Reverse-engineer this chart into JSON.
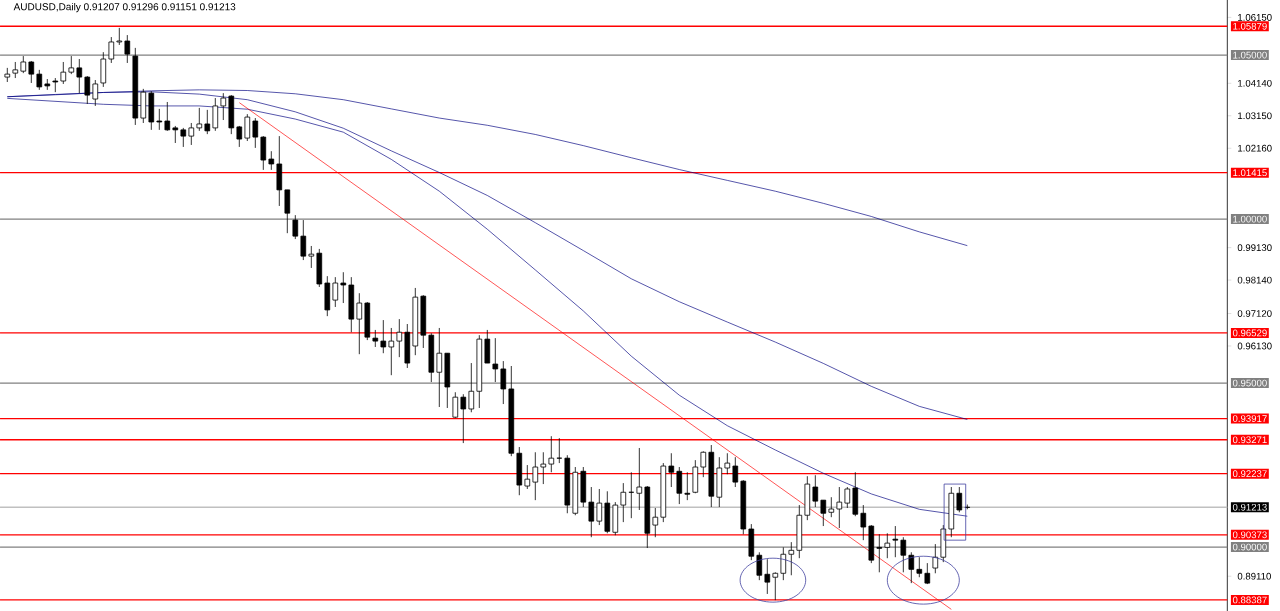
{
  "chart_data": {
    "type": "candlestick",
    "title": "AUDUSD,Daily 0.91207 0.91296 0.91151 0.91213",
    "categories": [
      null,
      null,
      null,
      null,
      null,
      null,
      null,
      null,
      null,
      null,
      null,
      null,
      null,
      null,
      null,
      null,
      null,
      null,
      null,
      null,
      null,
      null,
      null,
      null,
      null,
      null,
      null,
      null,
      null,
      null,
      null,
      null,
      null,
      null,
      null,
      null,
      null,
      null,
      null,
      null,
      null,
      null,
      null,
      null,
      null,
      null,
      null,
      null,
      null,
      null,
      null,
      null,
      null,
      null,
      null,
      null,
      null,
      null,
      null,
      null,
      null,
      null,
      null,
      null,
      null,
      null,
      null,
      null,
      null,
      null,
      null,
      null,
      null,
      null,
      null,
      null,
      null,
      null,
      null,
      null,
      null,
      null,
      null,
      null,
      null,
      null,
      null,
      null,
      null,
      null,
      null,
      null,
      null,
      null,
      null,
      null,
      null,
      null,
      null,
      null,
      null,
      null,
      null,
      null,
      null,
      null,
      null,
      null,
      null,
      null,
      null,
      null,
      null,
      null,
      null,
      null,
      null,
      null,
      null,
      null,
      null,
      null,
      null,
      null,
      null,
      null,
      null,
      null,
      null,
      null,
      null,
      null,
      null,
      null,
      null,
      null,
      null,
      null,
      null,
      null,
      null,
      null,
      null,
      null,
      null,
      null,
      null,
      null,
      null,
      null,
      null,
      null,
      null
    ],
    "ohlc": [
      [
        1.0433,
        1.0461,
        1.0418,
        1.0442
      ],
      [
        1.0445,
        1.0479,
        1.043,
        1.0455
      ],
      [
        1.0451,
        1.0497,
        1.0445,
        1.0479
      ],
      [
        1.0479,
        1.0482,
        1.0415,
        1.0442
      ],
      [
        1.0442,
        1.0455,
        1.0394,
        1.0403
      ],
      [
        1.0412,
        1.0427,
        1.0394,
        1.0406
      ],
      [
        1.0421,
        1.043,
        1.0387,
        1.0418
      ],
      [
        1.0421,
        1.0479,
        1.0412,
        1.0448
      ],
      [
        1.0448,
        1.0497,
        1.0442,
        1.0461
      ],
      [
        1.0461,
        1.0488,
        1.0384,
        1.0433
      ],
      [
        1.0433,
        1.0436,
        1.0351,
        1.0378
      ],
      [
        1.0366,
        1.0424,
        1.0345,
        1.0412
      ],
      [
        1.0415,
        1.0509,
        1.0403,
        1.0488
      ],
      [
        1.0488,
        1.0555,
        1.0476,
        1.054
      ],
      [
        1.054,
        1.0583,
        1.0531,
        1.0543
      ],
      [
        1.0543,
        1.0561,
        1.0476,
        1.0503
      ],
      [
        1.0497,
        1.0522,
        1.0287,
        1.0308
      ],
      [
        1.0308,
        1.0397,
        1.0293,
        1.0387
      ],
      [
        1.0384,
        1.039,
        1.0272,
        1.0296
      ],
      [
        1.0299,
        1.0336,
        1.0272,
        1.0296
      ],
      [
        1.0299,
        1.0357,
        1.0269,
        1.0272
      ],
      [
        1.0278,
        1.0284,
        1.0232,
        1.0272
      ],
      [
        1.0272,
        1.0278,
        1.022,
        1.0253
      ],
      [
        1.0253,
        1.0293,
        1.0226,
        1.0278
      ],
      [
        1.0278,
        1.0339,
        1.0269,
        1.029
      ],
      [
        1.029,
        1.0333,
        1.0259,
        1.0269
      ],
      [
        1.0278,
        1.0369,
        1.0269,
        1.0345
      ],
      [
        1.0345,
        1.0384,
        1.0302,
        1.0369
      ],
      [
        1.0375,
        1.0378,
        1.0259,
        1.0278
      ],
      [
        1.0281,
        1.0284,
        1.022,
        1.0244
      ],
      [
        1.0247,
        1.032,
        1.0238,
        1.0311
      ],
      [
        1.0299,
        1.0308,
        1.0217,
        1.025
      ],
      [
        1.025,
        1.0253,
        1.015,
        1.018
      ],
      [
        1.0183,
        1.0207,
        1.015,
        1.0168
      ],
      [
        1.0168,
        1.0253,
        1.004,
        1.0089
      ],
      [
        1.0089,
        1.0089,
        0.9957,
        1.0018
      ],
      [
        0.9997,
        1.0012,
        0.9939,
        0.9948
      ],
      [
        0.9948,
        0.9997,
        0.9875,
        0.9887
      ],
      [
        0.9887,
        0.9918,
        0.9851,
        0.9893
      ],
      [
        0.9896,
        0.9909,
        0.9793,
        0.9802
      ],
      [
        0.9805,
        0.9826,
        0.9704,
        0.9723
      ],
      [
        0.9753,
        0.9823,
        0.9732,
        0.9805
      ],
      [
        0.9805,
        0.9838,
        0.9744,
        0.9799
      ],
      [
        0.9799,
        0.9823,
        0.9655,
        0.9695
      ],
      [
        0.9695,
        0.9774,
        0.9588,
        0.9744
      ],
      [
        0.9744,
        0.9747,
        0.9631,
        0.964
      ],
      [
        0.9637,
        0.9662,
        0.961,
        0.9628
      ],
      [
        0.9628,
        0.9692,
        0.9591,
        0.961
      ],
      [
        0.961,
        0.9668,
        0.9524,
        0.9628
      ],
      [
        0.9628,
        0.9695,
        0.9579,
        0.9655
      ],
      [
        0.9655,
        0.968,
        0.9546,
        0.9561
      ],
      [
        0.9613,
        0.979,
        0.9585,
        0.9762
      ],
      [
        0.9765,
        0.9768,
        0.9607,
        0.9646
      ],
      [
        0.9646,
        0.9652,
        0.9503,
        0.9533
      ],
      [
        0.9533,
        0.9668,
        0.9427,
        0.9591
      ],
      [
        0.9591,
        0.9591,
        0.9424,
        0.9488
      ],
      [
        0.9396,
        0.9472,
        0.9393,
        0.9457
      ],
      [
        0.9457,
        0.9466,
        0.9317,
        0.9421
      ],
      [
        0.9421,
        0.9561,
        0.9411,
        0.9475
      ],
      [
        0.9475,
        0.9646,
        0.9424,
        0.9634
      ],
      [
        0.9634,
        0.9662,
        0.9561,
        0.9561
      ],
      [
        0.9558,
        0.9637,
        0.9503,
        0.9543
      ],
      [
        0.9543,
        0.9567,
        0.9436,
        0.9482
      ],
      [
        0.9482,
        0.9552,
        0.9277,
        0.9286
      ],
      [
        0.9286,
        0.9305,
        0.9158,
        0.9189
      ],
      [
        0.9186,
        0.925,
        0.9177,
        0.9207
      ],
      [
        0.9198,
        0.9289,
        0.9143,
        0.9244
      ],
      [
        0.9244,
        0.9289,
        0.9192,
        0.9253
      ],
      [
        0.9253,
        0.9338,
        0.9228,
        0.9271
      ],
      [
        0.9271,
        0.9332,
        0.9256,
        0.9271
      ],
      [
        0.9271,
        0.928,
        0.9103,
        0.9128
      ],
      [
        0.9103,
        0.9244,
        0.9097,
        0.9228
      ],
      [
        0.9231,
        0.9244,
        0.9122,
        0.9137
      ],
      [
        0.9137,
        0.9183,
        0.903,
        0.9079
      ],
      [
        0.9079,
        0.9177,
        0.9067,
        0.9134
      ],
      [
        0.9134,
        0.917,
        0.9042,
        0.9048
      ],
      [
        0.9045,
        0.9137,
        0.9036,
        0.9128
      ],
      [
        0.9128,
        0.9195,
        0.9076,
        0.9167
      ],
      [
        0.9167,
        0.9228,
        0.9088,
        0.9167
      ],
      [
        0.9164,
        0.9302,
        0.9113,
        0.9183
      ],
      [
        0.9183,
        0.9186,
        0.8997,
        0.9042
      ],
      [
        0.9067,
        0.9119,
        0.903,
        0.9091
      ],
      [
        0.9091,
        0.9256,
        0.9076,
        0.9247
      ],
      [
        0.9247,
        0.9286,
        0.9183,
        0.9228
      ],
      [
        0.9231,
        0.9244,
        0.9131,
        0.9164
      ],
      [
        0.9164,
        0.9228,
        0.9143,
        0.9161
      ],
      [
        0.9167,
        0.9265,
        0.9164,
        0.9244
      ],
      [
        0.9244,
        0.9292,
        0.9213,
        0.9289
      ],
      [
        0.9289,
        0.9311,
        0.9122,
        0.9155
      ],
      [
        0.9152,
        0.9274,
        0.9122,
        0.9241
      ],
      [
        0.9241,
        0.9286,
        0.9222,
        0.9256
      ],
      [
        0.9247,
        0.9274,
        0.9183,
        0.9198
      ],
      [
        0.9201,
        0.9204,
        0.9039,
        0.9055
      ],
      [
        0.9055,
        0.907,
        0.896,
        0.8972
      ],
      [
        0.8975,
        0.8984,
        0.8899,
        0.8914
      ],
      [
        0.8917,
        0.8963,
        0.8857,
        0.8893
      ],
      [
        0.8908,
        0.8923,
        0.8838,
        0.892
      ],
      [
        0.892,
        0.8999,
        0.8899,
        0.8978
      ],
      [
        0.8978,
        0.9015,
        0.8914,
        0.899
      ],
      [
        0.899,
        0.9128,
        0.8966,
        0.9097
      ],
      [
        0.9097,
        0.9216,
        0.9082,
        0.9192
      ],
      [
        0.9183,
        0.9219,
        0.9122,
        0.914
      ],
      [
        0.9143,
        0.9143,
        0.9064,
        0.9103
      ],
      [
        0.9106,
        0.9152,
        0.9091,
        0.9116
      ],
      [
        0.9116,
        0.9183,
        0.9058,
        0.9137
      ],
      [
        0.9134,
        0.9183,
        0.9119,
        0.9177
      ],
      [
        0.918,
        0.9228,
        0.9094,
        0.91
      ],
      [
        0.9103,
        0.9128,
        0.9021,
        0.9061
      ],
      [
        0.9064,
        0.9067,
        0.8951,
        0.896
      ],
      [
        0.8999,
        0.9039,
        0.8923,
        0.8996
      ],
      [
        0.8999,
        0.9042,
        0.8966,
        0.9012
      ],
      [
        0.9024,
        0.9064,
        0.8969,
        0.9021
      ],
      [
        0.9021,
        0.903,
        0.8923,
        0.8975
      ],
      [
        0.8975,
        0.8984,
        0.889,
        0.8932
      ],
      [
        0.8932,
        0.8969,
        0.8908,
        0.892
      ],
      [
        0.892,
        0.8951,
        0.8887,
        0.889
      ],
      [
        0.8936,
        0.9009,
        0.892,
        0.8969
      ],
      [
        0.8969,
        0.9067,
        0.8954,
        0.9055
      ],
      [
        0.9055,
        0.9183,
        0.903,
        0.9164
      ],
      [
        0.9164,
        0.9183,
        0.9106,
        0.9113
      ],
      [
        0.91207,
        0.91296,
        0.91151,
        0.91213
      ],
      null,
      null,
      null,
      null,
      null,
      null,
      null,
      null,
      null,
      null,
      null,
      null,
      null,
      null,
      null,
      null,
      null,
      null,
      null,
      null,
      null,
      null,
      null,
      null,
      null,
      null,
      null,
      null,
      null,
      null,
      null,
      null
    ],
    "series": [
      {
        "type": "line",
        "color": "#000080",
        "values": [
          1.0373,
          null,
          null,
          null,
          null,
          null,
          1.0379,
          null,
          null,
          null,
          null,
          null,
          1.0386,
          null,
          null,
          null,
          null,
          null,
          1.0391,
          null,
          null,
          null,
          null,
          null,
          1.0394,
          null,
          null,
          null,
          null,
          null,
          1.0392,
          null,
          null,
          null,
          null,
          null,
          1.0382,
          null,
          null,
          null,
          null,
          null,
          1.0364,
          null,
          null,
          null,
          null,
          null,
          1.0336,
          null,
          null,
          null,
          null,
          null,
          1.0308,
          null,
          null,
          null,
          null,
          null,
          1.0286,
          null,
          null,
          null,
          null,
          null,
          1.0258,
          null,
          null,
          null,
          null,
          null,
          1.0224,
          null,
          null,
          null,
          null,
          null,
          1.0187,
          null,
          null,
          null,
          null,
          null,
          1.0151,
          null,
          null,
          null,
          null,
          null,
          1.0118,
          null,
          null,
          null,
          null,
          null,
          1.0085,
          null,
          null,
          null,
          null,
          null,
          1.0048,
          null,
          null,
          null,
          null,
          null,
          1.0008,
          null,
          null,
          null,
          null,
          null,
          0.9961,
          null,
          null,
          null,
          null,
          null,
          0.9919,
          null,
          null,
          null,
          null,
          null,
          null,
          null,
          null,
          null,
          null,
          null,
          null,
          null,
          null,
          null,
          null,
          null,
          null,
          null,
          null,
          null,
          null,
          null,
          null,
          null,
          null,
          null,
          null,
          null,
          null,
          null,
          null
        ]
      },
      {
        "type": "line",
        "color": "#000080",
        "values": [
          1.0373,
          null,
          null,
          null,
          null,
          null,
          1.038,
          null,
          null,
          null,
          null,
          null,
          1.0386,
          null,
          null,
          null,
          null,
          null,
          1.0388,
          null,
          null,
          null,
          null,
          null,
          1.0381,
          null,
          null,
          null,
          null,
          null,
          1.0364,
          null,
          null,
          null,
          null,
          null,
          1.0327,
          null,
          null,
          null,
          null,
          null,
          1.0277,
          null,
          null,
          null,
          null,
          null,
          1.0208,
          null,
          null,
          null,
          null,
          null,
          1.0142,
          null,
          null,
          null,
          null,
          null,
          1.0072,
          null,
          null,
          null,
          null,
          null,
          0.9989,
          null,
          null,
          null,
          null,
          null,
          0.9904,
          null,
          null,
          null,
          null,
          null,
          0.9818,
          null,
          null,
          null,
          null,
          null,
          0.9748,
          null,
          null,
          null,
          null,
          null,
          0.9686,
          null,
          null,
          null,
          null,
          null,
          0.9625,
          null,
          null,
          null,
          null,
          null,
          0.956,
          null,
          null,
          null,
          null,
          null,
          0.949,
          null,
          null,
          null,
          null,
          null,
          0.9429,
          null,
          null,
          null,
          null,
          null,
          0.9389,
          null,
          null,
          null,
          null,
          null,
          null,
          null,
          null,
          null,
          null,
          null,
          null,
          null,
          null,
          null,
          null,
          null,
          null,
          null,
          null,
          null,
          null,
          null,
          null,
          null,
          null,
          null,
          null,
          null,
          null,
          null,
          null
        ]
      },
      {
        "type": "line",
        "color": "#000080",
        "values": [
          1.0368,
          null,
          null,
          null,
          null,
          null,
          1.0359,
          null,
          null,
          null,
          null,
          null,
          1.035,
          null,
          null,
          null,
          null,
          null,
          1.0345,
          null,
          null,
          null,
          null,
          null,
          1.0345,
          null,
          null,
          null,
          null,
          null,
          1.0335,
          null,
          null,
          null,
          null,
          null,
          1.0305,
          null,
          null,
          null,
          null,
          null,
          1.0265,
          null,
          null,
          null,
          null,
          null,
          1.0182,
          null,
          null,
          null,
          null,
          null,
          1.0085,
          null,
          null,
          null,
          null,
          null,
          0.9969,
          null,
          null,
          null,
          null,
          null,
          0.9845,
          null,
          null,
          null,
          null,
          null,
          0.972,
          null,
          null,
          null,
          null,
          null,
          0.9582,
          null,
          null,
          null,
          null,
          null,
          0.9463,
          null,
          null,
          null,
          null,
          null,
          0.937,
          null,
          null,
          null,
          null,
          null,
          0.9296,
          null,
          null,
          null,
          null,
          null,
          0.9225,
          null,
          null,
          null,
          null,
          null,
          0.9162,
          null,
          null,
          null,
          null,
          null,
          0.9115,
          null,
          null,
          null,
          null,
          null,
          0.9094,
          null,
          null,
          null,
          null,
          null,
          null,
          null,
          null,
          null,
          null,
          null,
          null,
          null,
          null,
          null,
          null,
          null,
          null,
          null,
          null,
          null,
          null,
          null,
          null,
          null,
          null,
          null,
          null,
          null,
          null,
          null,
          null
        ]
      },
      {
        "type": "line",
        "color": "#ff0000",
        "values": [
          null,
          null,
          null,
          null,
          null,
          null,
          null,
          null,
          null,
          null,
          null,
          null,
          null,
          null,
          null,
          null,
          null,
          null,
          null,
          null,
          null,
          null,
          null,
          null,
          null,
          null,
          null,
          null,
          null,
          1.0355,
          null,
          null,
          null,
          null,
          null,
          null,
          null,
          null,
          null,
          null,
          null,
          null,
          null,
          null,
          null,
          null,
          null,
          null,
          null,
          null,
          null,
          null,
          null,
          null,
          null,
          null,
          null,
          null,
          null,
          null,
          null,
          null,
          null,
          null,
          null,
          null,
          null,
          null,
          null,
          null,
          null,
          null,
          null,
          null,
          null,
          null,
          null,
          null,
          null,
          null,
          null,
          null,
          null,
          null,
          null,
          null,
          null,
          null,
          null,
          null,
          null,
          null,
          null,
          null,
          null,
          null,
          null,
          null,
          null,
          null,
          null,
          null,
          null,
          null,
          null,
          null,
          null,
          null,
          null,
          null,
          null,
          null,
          null,
          null,
          null,
          null,
          null,
          null,
          0.881,
          null,
          null,
          null,
          null,
          null,
          null,
          null,
          null,
          null,
          null,
          null,
          null,
          null,
          null,
          null,
          null,
          null,
          null,
          null,
          null,
          null,
          null,
          null,
          null,
          null,
          null,
          null,
          null,
          null,
          null,
          null,
          null,
          null,
          null
        ]
      }
    ],
    "ylim": [
      0.8805,
      1.0668
    ],
    "yticks": [
      {
        "value": 1.0615,
        "label": "1.06150"
      },
      {
        "value": 1.0414,
        "label": "1.04140"
      },
      {
        "value": 1.0315,
        "label": "1.03150"
      },
      {
        "value": 1.0216,
        "label": "1.02160"
      },
      {
        "value": 0.9913,
        "label": "0.99130"
      },
      {
        "value": 0.9814,
        "label": "0.98140"
      },
      {
        "value": 0.9712,
        "label": "0.97120"
      },
      {
        "value": 0.9613,
        "label": "0.96130"
      },
      {
        "value": 0.8911,
        "label": "0.89110"
      }
    ],
    "tick_labels": "y",
    "ref_lines": [
      {
        "axis": "y",
        "value": 1.05879,
        "label": "1.05879",
        "color": "#ff0000"
      },
      {
        "axis": "y",
        "value": 1.05,
        "label": "1.05000",
        "color": "#808080"
      },
      {
        "axis": "y",
        "value": 1.01415,
        "label": "1.01415",
        "color": "#ff0000"
      },
      {
        "axis": "y",
        "value": 1.0,
        "label": "1.00000",
        "color": "#808080"
      },
      {
        "axis": "y",
        "value": 0.96529,
        "label": "0.96529",
        "color": "#ff0000"
      },
      {
        "axis": "y",
        "value": 0.95,
        "label": "0.95000",
        "color": "#808080"
      },
      {
        "axis": "y",
        "value": 0.93917,
        "label": "0.93917",
        "color": "#ff0000"
      },
      {
        "axis": "y",
        "value": 0.93271,
        "label": "0.93271",
        "color": "#ff0000"
      },
      {
        "axis": "y",
        "value": 0.92237,
        "label": "0.92237",
        "color": "#ff0000"
      },
      {
        "axis": "y",
        "value": 0.91213,
        "label": "0.91213",
        "color": "#c0c0c0"
      },
      {
        "axis": "y",
        "value": 0.90373,
        "label": "0.90373",
        "color": "#ff0000"
      },
      {
        "axis": "y",
        "value": 0.9,
        "label": "0.90000",
        "color": "#808080"
      },
      {
        "axis": "y",
        "value": 0.88387,
        "label": "0.88387",
        "color": "#ff0000"
      }
    ]
  }
}
